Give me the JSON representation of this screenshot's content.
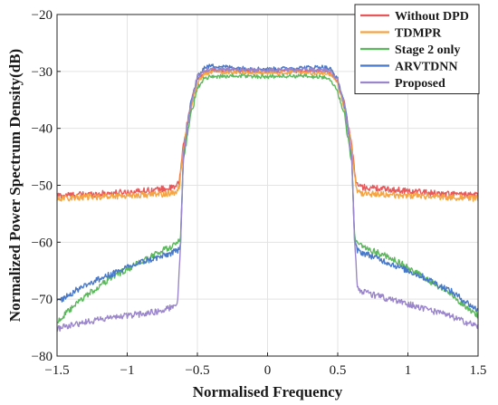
{
  "chart_data": {
    "type": "line",
    "title": "",
    "xlabel": "Normalised Frequency",
    "ylabel": "Normalized Power Spectrum Density(dB)",
    "xlim": [
      -1.5,
      1.5
    ],
    "ylim": [
      -80,
      -20
    ],
    "xticks": [
      -1.5,
      -1,
      -0.5,
      0,
      0.5,
      1,
      1.5
    ],
    "xtick_labels": [
      "−1.5",
      "−1",
      "−0.5",
      "0",
      "0.5",
      "1",
      "1.5"
    ],
    "yticks": [
      -80,
      -70,
      -60,
      -50,
      -40,
      -30,
      -20
    ],
    "ytick_labels": [
      "−80",
      "−70",
      "−60",
      "−50",
      "−40",
      "−30",
      "−20"
    ],
    "grid": true,
    "legend": "top-right",
    "series": [
      {
        "name": "Without DPD",
        "color": "#e8585a",
        "x": [
          -1.5,
          -1.2,
          -1.0,
          -0.8,
          -0.66,
          -0.63,
          -0.6,
          -0.55,
          -0.5,
          -0.45,
          -0.4,
          -0.2,
          0,
          0.2,
          0.4,
          0.45,
          0.5,
          0.55,
          0.6,
          0.63,
          0.66,
          0.8,
          1.0,
          1.2,
          1.5
        ],
        "y": [
          -51.8,
          -51.5,
          -51.2,
          -50.8,
          -50.4,
          -49.5,
          -43,
          -36,
          -31.5,
          -30.2,
          -29.8,
          -29.9,
          -30,
          -29.9,
          -30,
          -30.3,
          -31.8,
          -36,
          -43,
          -49.5,
          -50.3,
          -50.6,
          -51.0,
          -51.4,
          -51.8
        ]
      },
      {
        "name": "TDMPR",
        "color": "#f4a442",
        "x": [
          -1.5,
          -1.2,
          -1.0,
          -0.8,
          -0.66,
          -0.63,
          -0.6,
          -0.55,
          -0.5,
          -0.45,
          -0.4,
          -0.2,
          0,
          0.2,
          0.4,
          0.45,
          0.5,
          0.55,
          0.6,
          0.63,
          0.66,
          0.8,
          1.0,
          1.2,
          1.5
        ],
        "y": [
          -52.3,
          -52.0,
          -51.8,
          -51.6,
          -51.4,
          -50.5,
          -43.5,
          -36.5,
          -32,
          -30.5,
          -30.1,
          -30.2,
          -30.3,
          -30.2,
          -30.3,
          -30.6,
          -32.2,
          -36.5,
          -43.5,
          -50.5,
          -51.4,
          -51.6,
          -51.8,
          -52.0,
          -52.3
        ]
      },
      {
        "name": "Stage 2 only",
        "color": "#5cb85c",
        "x": [
          -1.5,
          -1.3,
          -1.1,
          -0.9,
          -0.75,
          -0.64,
          -0.62,
          -0.6,
          -0.55,
          -0.5,
          -0.45,
          -0.4,
          -0.2,
          0,
          0.2,
          0.4,
          0.45,
          0.5,
          0.55,
          0.6,
          0.62,
          0.64,
          0.75,
          0.9,
          1.1,
          1.3,
          1.5
        ],
        "y": [
          -74,
          -69.5,
          -66,
          -63.5,
          -61.5,
          -60.2,
          -59,
          -46,
          -38,
          -33,
          -31.2,
          -30.9,
          -30.8,
          -30.9,
          -30.8,
          -31,
          -31.5,
          -33.5,
          -38,
          -46,
          -59,
          -60.3,
          -61.5,
          -63,
          -66,
          -69,
          -73
        ]
      },
      {
        "name": "ARVTDNN",
        "color": "#4878c8",
        "x": [
          -1.5,
          -1.3,
          -1.1,
          -0.9,
          -0.75,
          -0.64,
          -0.62,
          -0.6,
          -0.55,
          -0.5,
          -0.45,
          -0.4,
          -0.2,
          0,
          0.2,
          0.4,
          0.45,
          0.5,
          0.55,
          0.6,
          0.62,
          0.64,
          0.75,
          0.9,
          1.1,
          1.3,
          1.5
        ],
        "y": [
          -70.5,
          -67.5,
          -65.5,
          -63.5,
          -62.5,
          -61.5,
          -60,
          -45,
          -36,
          -31,
          -29.3,
          -29.0,
          -29.4,
          -29.6,
          -29.4,
          -29.2,
          -29.6,
          -31.5,
          -36,
          -45,
          -60,
          -61.5,
          -62.5,
          -64,
          -66,
          -68.5,
          -72
        ]
      },
      {
        "name": "Proposed",
        "color": "#9b86cc",
        "x": [
          -1.5,
          -1.3,
          -1.1,
          -0.9,
          -0.75,
          -0.66,
          -0.64,
          -0.62,
          -0.6,
          -0.55,
          -0.5,
          -0.45,
          -0.4,
          -0.2,
          0,
          0.2,
          0.4,
          0.45,
          0.5,
          0.55,
          0.6,
          0.62,
          0.64,
          0.66,
          0.75,
          0.9,
          1.1,
          1.3,
          1.5
        ],
        "y": [
          -75.2,
          -74,
          -73.2,
          -72.6,
          -72,
          -71.2,
          -70,
          -60,
          -45,
          -36,
          -31,
          -29.8,
          -29.6,
          -29.7,
          -29.8,
          -29.7,
          -29.7,
          -30,
          -31.5,
          -36,
          -45,
          -60,
          -67.5,
          -68.6,
          -69.2,
          -70.2,
          -71.5,
          -73,
          -74.8
        ]
      }
    ]
  }
}
